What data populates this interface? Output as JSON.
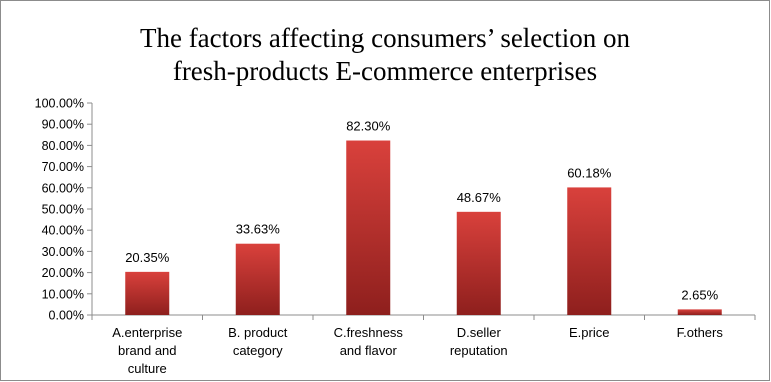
{
  "chart_data": {
    "type": "bar",
    "title_lines": [
      "The factors affecting consumers’ selection on",
      "fresh-products E-commerce enterprises"
    ],
    "categories": [
      [
        "A.enterprise",
        "brand and",
        "culture"
      ],
      [
        "B. product",
        "category"
      ],
      [
        "C.freshness",
        "and flavor"
      ],
      [
        "D.seller",
        "reputation"
      ],
      [
        "E.price"
      ],
      [
        "F.others"
      ]
    ],
    "values": [
      20.35,
      33.63,
      82.3,
      48.67,
      60.18,
      2.65
    ],
    "value_labels": [
      "20.35%",
      "33.63%",
      "82.30%",
      "48.67%",
      "60.18%",
      "2.65%"
    ],
    "ylim": [
      0,
      100
    ],
    "yticks": [
      0,
      10,
      20,
      30,
      40,
      50,
      60,
      70,
      80,
      90,
      100
    ],
    "ytick_labels": [
      "0.00%",
      "10.00%",
      "20.00%",
      "30.00%",
      "40.00%",
      "50.00%",
      "60.00%",
      "70.00%",
      "80.00%",
      "90.00%",
      "100.00%"
    ],
    "xlabel": "",
    "ylabel": "",
    "grid": false,
    "legend": "none",
    "bar_color_top": "#d9413c",
    "bar_color_bottom": "#8e1f1d"
  }
}
